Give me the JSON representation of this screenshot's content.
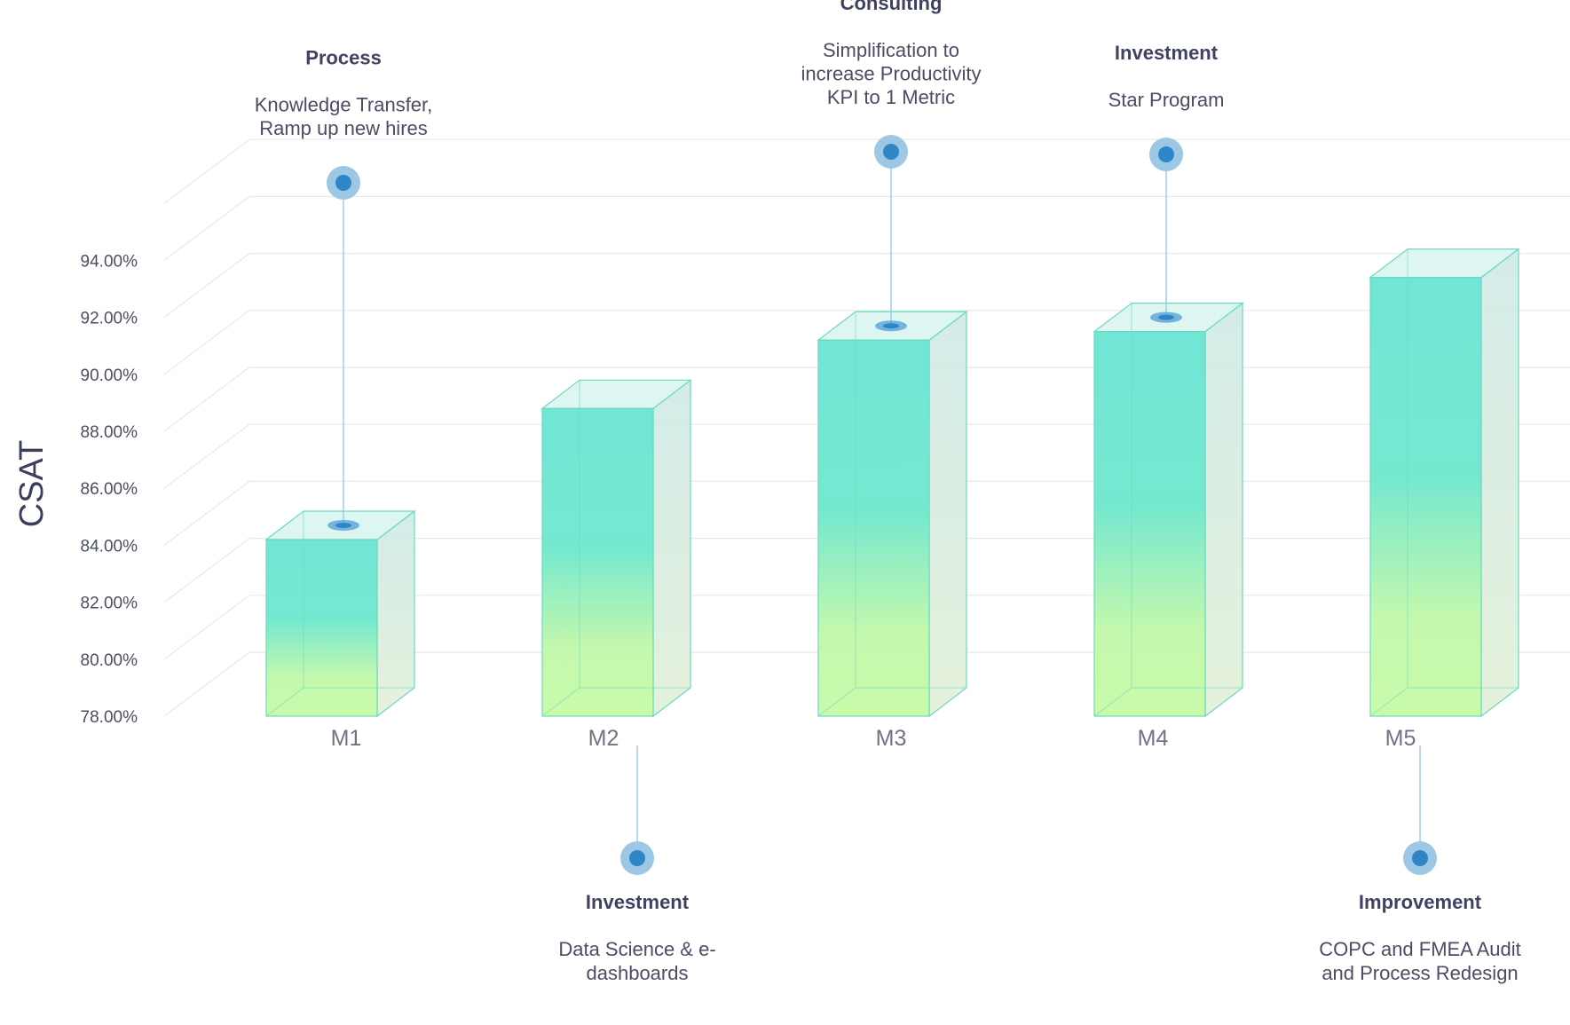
{
  "chart_data": {
    "type": "bar",
    "ylabel": "CSAT",
    "xlabel": "",
    "ylim": [
      78,
      94
    ],
    "yticks": [
      "78.00%",
      "80.00%",
      "82.00%",
      "84.00%",
      "86.00%",
      "88.00%",
      "90.00%",
      "92.00%",
      "94.00%"
    ],
    "categories": [
      "M1",
      "M2",
      "M3",
      "M4",
      "M5"
    ],
    "values": [
      84.2,
      88.8,
      91.2,
      91.5,
      93.4
    ],
    "grid": true,
    "style": "3d-box",
    "colors": {
      "bar_top": "#72e6d6",
      "bar_bottom": "#c6fbac",
      "edge": "#6ad9bf",
      "marker": "#2f86c6",
      "marker_halo": "#9cc8e6",
      "gridline": "#e6e8ec"
    },
    "annotations": [
      {
        "category": "M1",
        "position": "above",
        "title": "Process",
        "lines": [
          "Knowledge Transfer,",
          "Ramp up new hires"
        ]
      },
      {
        "category": "M2",
        "position": "below",
        "title": "Investment",
        "lines": [
          "Data Science & e-",
          "dashboards"
        ]
      },
      {
        "category": "M3",
        "position": "above",
        "title": "Consulting",
        "lines": [
          "Simplification to",
          "increase Productivity",
          "KPI to 1 Metric"
        ]
      },
      {
        "category": "M4",
        "position": "above",
        "title": "Investment",
        "lines": [
          "Star Program"
        ]
      },
      {
        "category": "M5",
        "position": "below",
        "title": "Improvement",
        "lines": [
          "COPC and FMEA Audit",
          "and Process Redesign"
        ]
      }
    ]
  }
}
